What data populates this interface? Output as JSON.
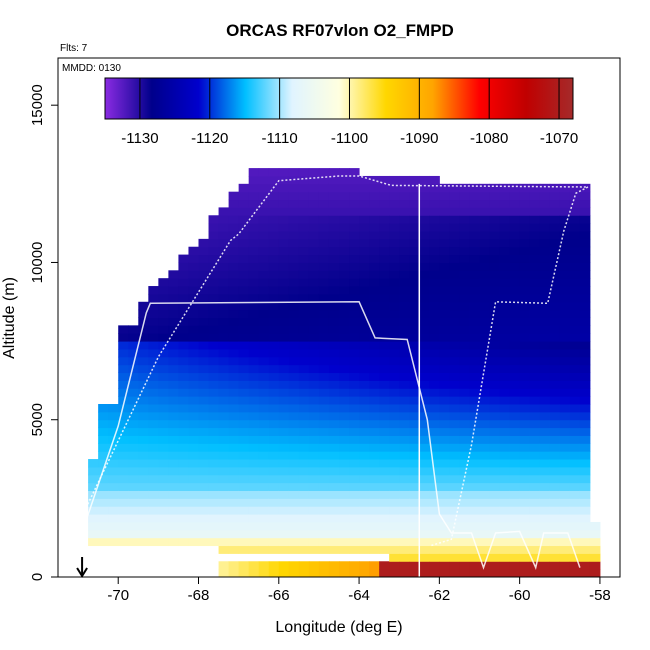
{
  "chart_data": {
    "type": "heatmap",
    "title": "ORCAS RF07vlon O2_FMPD",
    "annotations": {
      "flights": "Flts: 7",
      "date": "MMDD: 0130"
    },
    "xlabel": "Longitude (deg E)",
    "ylabel": "Altitude (m)",
    "xlim": [
      -71.5,
      -57.5
    ],
    "ylim": [
      0,
      16500
    ],
    "x_ticks": [
      -70,
      -68,
      -66,
      -64,
      -62,
      -60,
      -58
    ],
    "x_tick_labels": [
      "-70",
      "-68",
      "-66",
      "-64",
      "-62",
      "-60",
      "-58"
    ],
    "y_ticks": [
      0,
      5000,
      10000,
      15000
    ],
    "y_tick_labels": [
      "0",
      "5000",
      "10000",
      "15000"
    ],
    "colorbar": {
      "range": [
        -1135,
        -1068
      ],
      "ticks": [
        -1130,
        -1120,
        -1110,
        -1100,
        -1090,
        -1080,
        -1070
      ],
      "tick_labels": [
        "-1130",
        "-1120",
        "-1110",
        "-1100",
        "-1090",
        "-1080",
        "-1070"
      ],
      "stops": [
        "#8a2be2",
        "#00008b",
        "#0000cd",
        "#00bfff",
        "#e0f4ff",
        "#ffffe0",
        "#ffd700",
        "#ffa500",
        "#ff0000",
        "#c00000",
        "#a52a2a"
      ]
    },
    "arrow_longitude": -70.9,
    "field_value_range": [
      -1133,
      -1070
    ],
    "flight_track": {
      "color": "#ffffff",
      "points": [
        [
          -70.8,
          1800
        ],
        [
          -70.0,
          4800
        ],
        [
          -69.3,
          8400
        ],
        [
          -69.2,
          8700
        ],
        [
          -64.0,
          8750
        ],
        [
          -63.6,
          7600
        ],
        [
          -62.8,
          7550
        ],
        [
          -62.3,
          5000
        ],
        [
          -62.0,
          2000
        ],
        [
          -61.7,
          1400
        ],
        [
          -61.2,
          1400
        ],
        [
          -60.9,
          300
        ],
        [
          -60.6,
          1400
        ],
        [
          -60.0,
          1450
        ],
        [
          -59.6,
          300
        ],
        [
          -59.4,
          1400
        ],
        [
          -58.8,
          1400
        ],
        [
          -58.5,
          300
        ]
      ],
      "points2": [
        [
          -70.8,
          2200
        ],
        [
          -69.0,
          7000
        ],
        [
          -67.2,
          10700
        ],
        [
          -67.0,
          10900
        ],
        [
          -66.0,
          12600
        ],
        [
          -64.5,
          12750
        ],
        [
          -64.0,
          12750
        ],
        [
          -63.2,
          12450
        ],
        [
          -58.3,
          12400
        ],
        [
          -58.6,
          12200
        ],
        [
          -58.9,
          11000
        ],
        [
          -59.3,
          8700
        ],
        [
          -60.6,
          8750
        ],
        [
          -61.2,
          4200
        ],
        [
          -61.7,
          1200
        ],
        [
          -62.2,
          1000
        ]
      ],
      "vertical_line_longitude": -62.5,
      "vertical_line_top": 12500
    }
  }
}
